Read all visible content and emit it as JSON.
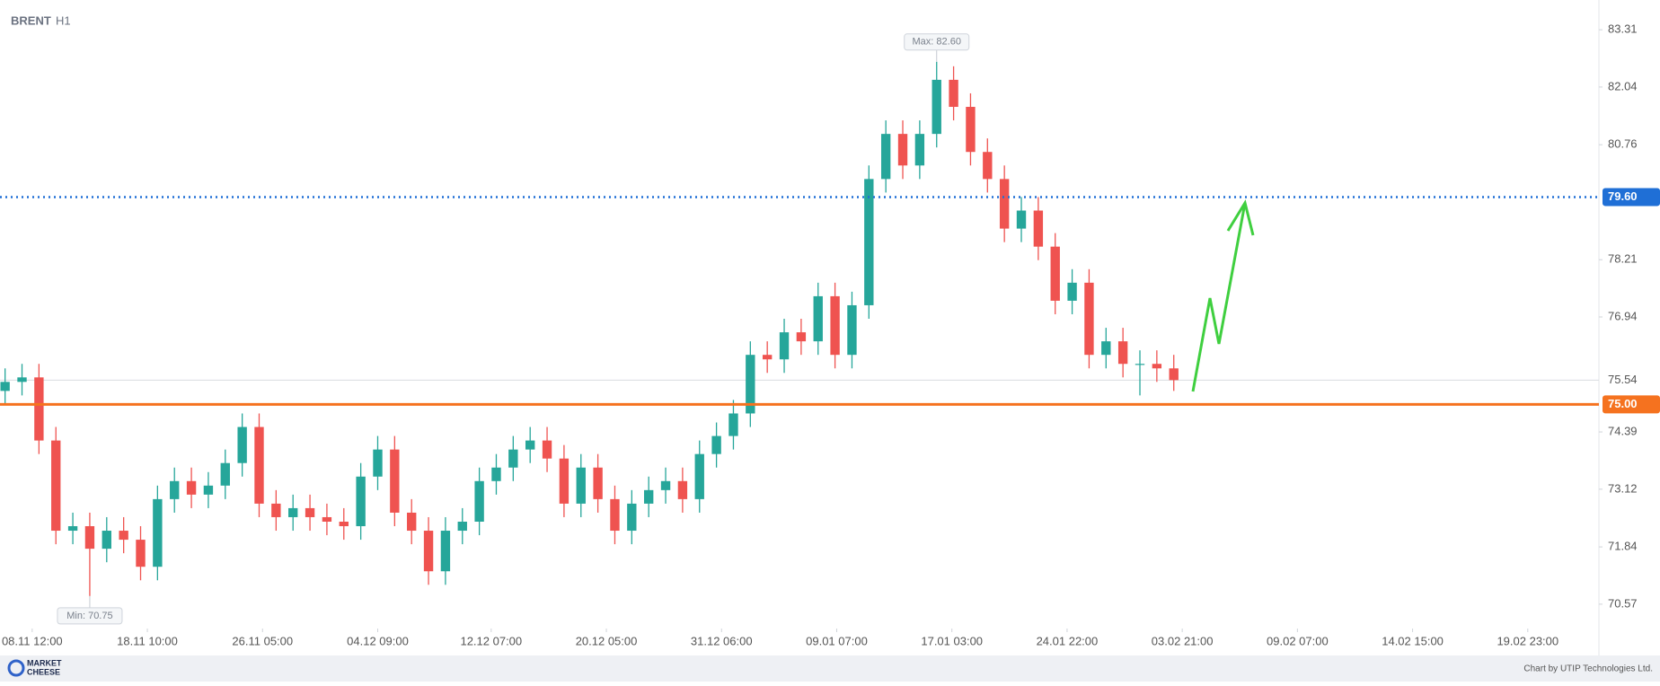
{
  "chart_data": {
    "type": "candlestick",
    "title": "BRENT",
    "subtitle": "H1",
    "up_color": "#26a69a",
    "down_color": "#ef5350",
    "ylim": [
      70.03,
      83.97
    ],
    "yticks": [
      83.31,
      82.04,
      80.76,
      78.21,
      76.94,
      74.39,
      73.12,
      71.84,
      70.57
    ],
    "xlim": [
      -0.3,
      94.1
    ],
    "xticks": [
      {
        "value": 1.6,
        "label": "08.11 12:00"
      },
      {
        "value": 8.4,
        "label": "18.11 10:00"
      },
      {
        "value": 15.2,
        "label": "26.11 05:00"
      },
      {
        "value": 22.0,
        "label": "04.12 09:00"
      },
      {
        "value": 28.7,
        "label": "12.12 07:00"
      },
      {
        "value": 35.5,
        "label": "20.12 05:00"
      },
      {
        "value": 42.3,
        "label": "31.12 06:00"
      },
      {
        "value": 49.1,
        "label": "09.01 07:00"
      },
      {
        "value": 55.9,
        "label": "17.01 03:00"
      },
      {
        "value": 62.7,
        "label": "24.01 22:00"
      },
      {
        "value": 69.5,
        "label": "03.02 21:00"
      },
      {
        "value": 76.3,
        "label": "09.02 07:00"
      },
      {
        "value": 83.1,
        "label": "14.02 15:00"
      },
      {
        "value": 89.9,
        "label": "19.02 23:00"
      }
    ],
    "open": [
      75.3,
      75.5,
      75.6,
      74.2,
      72.2,
      72.3,
      71.8,
      72.2,
      72.0,
      71.4,
      72.9,
      73.3,
      73.0,
      73.2,
      73.7,
      74.5,
      72.8,
      72.5,
      72.7,
      72.5,
      72.4,
      72.3,
      73.4,
      74.0,
      72.6,
      72.2,
      71.3,
      72.2,
      72.4,
      73.3,
      73.6,
      74.0,
      74.2,
      73.8,
      72.8,
      73.6,
      72.9,
      72.2,
      72.8,
      73.1,
      73.3,
      72.9,
      73.9,
      74.3,
      74.8,
      76.1,
      76.0,
      76.6,
      76.4,
      77.4,
      76.1,
      77.2,
      80.0,
      81.0,
      80.3,
      81.0,
      82.2,
      81.6,
      80.6,
      80.0,
      78.9,
      79.3,
      78.5,
      77.3,
      77.7,
      76.1,
      76.4,
      75.9,
      75.9,
      75.8
    ],
    "high": [
      75.8,
      75.9,
      75.9,
      74.5,
      72.6,
      72.6,
      72.5,
      72.5,
      72.3,
      73.2,
      73.6,
      73.6,
      73.5,
      74.0,
      74.8,
      74.8,
      73.1,
      73.0,
      73.0,
      72.8,
      72.7,
      73.7,
      74.3,
      74.3,
      72.9,
      72.5,
      72.5,
      72.7,
      73.6,
      73.9,
      74.3,
      74.5,
      74.5,
      74.1,
      73.9,
      73.9,
      73.2,
      73.1,
      73.4,
      73.6,
      73.6,
      74.2,
      74.6,
      75.1,
      76.4,
      76.4,
      76.9,
      76.9,
      77.7,
      77.7,
      77.5,
      80.3,
      81.3,
      81.3,
      81.3,
      82.6,
      82.5,
      81.9,
      80.9,
      80.3,
      79.6,
      79.6,
      78.8,
      78.0,
      78.0,
      76.7,
      76.7,
      76.2,
      76.2,
      76.1
    ],
    "low": [
      75.0,
      75.2,
      73.9,
      71.9,
      71.9,
      70.75,
      71.5,
      71.7,
      71.1,
      71.1,
      72.6,
      72.7,
      72.7,
      72.9,
      73.4,
      72.5,
      72.2,
      72.2,
      72.2,
      72.1,
      72.0,
      72.0,
      73.1,
      72.3,
      71.9,
      71.0,
      71.0,
      71.9,
      72.1,
      73.0,
      73.3,
      73.7,
      73.5,
      72.5,
      72.5,
      72.6,
      71.9,
      71.9,
      72.5,
      72.8,
      72.6,
      72.6,
      73.6,
      74.0,
      74.5,
      75.7,
      75.7,
      76.1,
      76.1,
      75.8,
      75.8,
      76.9,
      79.7,
      80.0,
      80.0,
      80.7,
      81.3,
      80.3,
      79.7,
      78.6,
      78.6,
      78.2,
      77.0,
      77.0,
      75.8,
      75.8,
      75.6,
      75.2,
      75.5,
      75.3
    ],
    "close": [
      75.5,
      75.6,
      74.2,
      72.2,
      72.3,
      71.8,
      72.2,
      72.0,
      71.4,
      72.9,
      73.3,
      73.0,
      73.2,
      73.7,
      74.5,
      72.8,
      72.5,
      72.7,
      72.5,
      72.4,
      72.3,
      73.4,
      74.0,
      72.6,
      72.2,
      71.3,
      72.2,
      72.4,
      73.3,
      73.6,
      74.0,
      74.2,
      73.8,
      72.8,
      73.6,
      72.9,
      72.2,
      72.8,
      73.1,
      73.3,
      72.9,
      73.9,
      74.3,
      74.8,
      76.1,
      76.0,
      76.6,
      76.4,
      77.4,
      76.1,
      77.2,
      80.0,
      81.0,
      80.3,
      81.0,
      82.2,
      81.6,
      80.6,
      80.0,
      78.9,
      79.3,
      78.5,
      77.3,
      77.7,
      76.1,
      76.4,
      75.9,
      75.9,
      75.8,
      75.54
    ],
    "levels": [
      {
        "value": 79.6,
        "label": "79.60",
        "color": "#1f6fd6",
        "style": "dotted"
      },
      {
        "value": 75.0,
        "label": "75.00",
        "color": "#f5721f",
        "style": "solid"
      }
    ],
    "last_price": {
      "value": 75.54,
      "label": "75.54"
    },
    "annotations": [
      {
        "text": "Max: 82.60",
        "x": 55,
        "y": 82.6,
        "position": "above"
      },
      {
        "text": "Min: 70.75",
        "x": 5,
        "y": 70.75,
        "position": "below"
      }
    ]
  },
  "footer": {
    "logo_top": "MARKET",
    "logo_bottom": "CHEESE",
    "credit": "Chart by UTIP Technologies Ltd."
  }
}
